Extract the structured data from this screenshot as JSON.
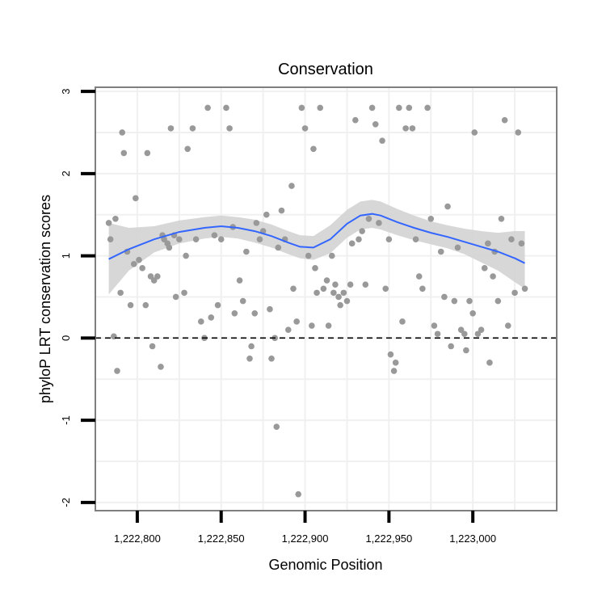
{
  "chart_data": {
    "type": "scatter",
    "title": "Conservation",
    "xlabel": "Genomic Position",
    "ylabel": "phyloP LRT conservation scores",
    "xlim": [
      1222775,
      1223050
    ],
    "ylim": [
      -2.1,
      3.05
    ],
    "x_ticks": [
      1222800,
      1222850,
      1222900,
      1222950,
      1223000
    ],
    "x_tick_labels": [
      "1,222,800",
      "1,222,850",
      "1,222,900",
      "1,222,950",
      "1,223,000"
    ],
    "y_ticks": [
      -2,
      -1,
      0,
      1,
      2,
      3
    ],
    "y_tick_labels": [
      "-2",
      "-1",
      "0",
      "1",
      "2",
      "3"
    ],
    "grid": true,
    "reference_line": {
      "y": 0,
      "style": "dashed"
    },
    "colors": {
      "points": "#999999",
      "smooth_line": "#3366ff",
      "confidence_band": "#d3d3d3",
      "panel_border": "#7f7f7f",
      "grid": "#f0f0f0"
    },
    "series": [
      {
        "kind": "points",
        "x": [
          1222783,
          1222784,
          1222786,
          1222787,
          1222788,
          1222790,
          1222791,
          1222792,
          1222794,
          1222796,
          1222798,
          1222799,
          1222801,
          1222803,
          1222805,
          1222806,
          1222808,
          1222809,
          1222810,
          1222812,
          1222814,
          1222815,
          1222816,
          1222818,
          1222819,
          1222820,
          1222822,
          1222823,
          1222825,
          1222828,
          1222829,
          1222830,
          1222833,
          1222835,
          1222838,
          1222840,
          1222842,
          1222844,
          1222846,
          1222848,
          1222850,
          1222853,
          1222855,
          1222857,
          1222858,
          1222861,
          1222863,
          1222865,
          1222867,
          1222868,
          1222870,
          1222871,
          1222873,
          1222875,
          1222877,
          1222879,
          1222880,
          1222882,
          1222883,
          1222884,
          1222886,
          1222888,
          1222890,
          1222892,
          1222893,
          1222895,
          1222896,
          1222898,
          1222900,
          1222902,
          1222904,
          1222905,
          1222906,
          1222907,
          1222909,
          1222911,
          1222913,
          1222914,
          1222916,
          1222917,
          1222918,
          1222920,
          1222921,
          1222923,
          1222925,
          1222927,
          1222928,
          1222930,
          1222932,
          1222934,
          1222936,
          1222938,
          1222940,
          1222942,
          1222944,
          1222946,
          1222948,
          1222950,
          1222951,
          1222953,
          1222954,
          1222956,
          1222958,
          1222960,
          1222962,
          1222964,
          1222966,
          1222968,
          1222970,
          1222973,
          1222975,
          1222977,
          1222979,
          1222981,
          1222983,
          1222985,
          1222987,
          1222989,
          1222991,
          1222993,
          1222995,
          1222996,
          1222998,
          1223000,
          1223001,
          1223003,
          1223005,
          1223007,
          1223009,
          1223010,
          1223012,
          1223013,
          1223015,
          1223017,
          1223019,
          1223021,
          1223023,
          1223025,
          1223027,
          1223029,
          1223031
        ],
        "y": [
          1.4,
          1.2,
          0.02,
          1.45,
          -0.4,
          0.55,
          2.5,
          2.25,
          1.05,
          0.4,
          0.9,
          1.7,
          0.95,
          0.85,
          0.4,
          2.25,
          0.75,
          -0.1,
          0.7,
          0.75,
          -0.35,
          1.25,
          1.2,
          1.15,
          1.1,
          2.55,
          1.25,
          0.5,
          1.2,
          0.55,
          1.0,
          2.3,
          2.55,
          1.2,
          0.2,
          0.0,
          2.8,
          0.25,
          1.25,
          0.4,
          1.2,
          2.8,
          2.55,
          1.35,
          0.3,
          0.7,
          0.45,
          1.05,
          -0.25,
          -0.1,
          0.3,
          1.4,
          1.2,
          1.3,
          1.5,
          0.35,
          -0.25,
          0.0,
          -1.08,
          1.1,
          1.55,
          1.2,
          0.1,
          1.85,
          0.6,
          0.2,
          -1.9,
          2.8,
          2.55,
          1.0,
          0.15,
          2.3,
          0.85,
          0.55,
          2.8,
          0.6,
          0.7,
          0.15,
          1.0,
          0.55,
          0.65,
          0.5,
          0.4,
          0.55,
          0.45,
          0.65,
          1.15,
          2.65,
          1.2,
          1.3,
          0.65,
          1.45,
          2.8,
          2.6,
          1.4,
          2.4,
          0.6,
          1.2,
          -0.2,
          -0.4,
          -0.3,
          2.8,
          0.2,
          2.55,
          2.8,
          2.55,
          1.2,
          0.75,
          0.6,
          2.8,
          1.45,
          0.15,
          0.05,
          1.05,
          0.5,
          1.6,
          -0.1,
          0.45,
          1.1,
          0.1,
          0.05,
          -0.15,
          0.45,
          0.3,
          2.5,
          0.05,
          0.1,
          0.85,
          1.15,
          -0.3,
          0.75,
          1.05,
          0.45,
          1.45,
          2.65,
          0.15,
          1.2,
          0.55,
          2.5,
          1.15,
          0.6
        ]
      },
      {
        "kind": "smooth",
        "x": [
          1222783,
          1222795,
          1222810,
          1222825,
          1222840,
          1222850,
          1222860,
          1222870,
          1222880,
          1222890,
          1222897,
          1222905,
          1222915,
          1222925,
          1222933,
          1222940,
          1222945,
          1222955,
          1222965,
          1222975,
          1222985,
          1222995,
          1223005,
          1223015,
          1223025,
          1223031
        ],
        "y": [
          0.96,
          1.08,
          1.2,
          1.29,
          1.34,
          1.36,
          1.34,
          1.3,
          1.24,
          1.16,
          1.11,
          1.1,
          1.2,
          1.39,
          1.49,
          1.51,
          1.49,
          1.41,
          1.34,
          1.28,
          1.23,
          1.17,
          1.11,
          1.05,
          0.97,
          0.91
        ],
        "ci_low": [
          0.53,
          0.82,
          1.04,
          1.15,
          1.21,
          1.23,
          1.21,
          1.16,
          1.1,
          1.02,
          0.97,
          0.95,
          1.03,
          1.22,
          1.32,
          1.34,
          1.32,
          1.25,
          1.19,
          1.14,
          1.09,
          1.02,
          0.92,
          0.82,
          0.68,
          0.6
        ],
        "ci_high": [
          1.4,
          1.34,
          1.36,
          1.43,
          1.47,
          1.49,
          1.47,
          1.44,
          1.38,
          1.3,
          1.25,
          1.24,
          1.37,
          1.56,
          1.66,
          1.68,
          1.66,
          1.57,
          1.49,
          1.42,
          1.37,
          1.33,
          1.3,
          1.28,
          1.3,
          1.3
        ]
      }
    ]
  }
}
